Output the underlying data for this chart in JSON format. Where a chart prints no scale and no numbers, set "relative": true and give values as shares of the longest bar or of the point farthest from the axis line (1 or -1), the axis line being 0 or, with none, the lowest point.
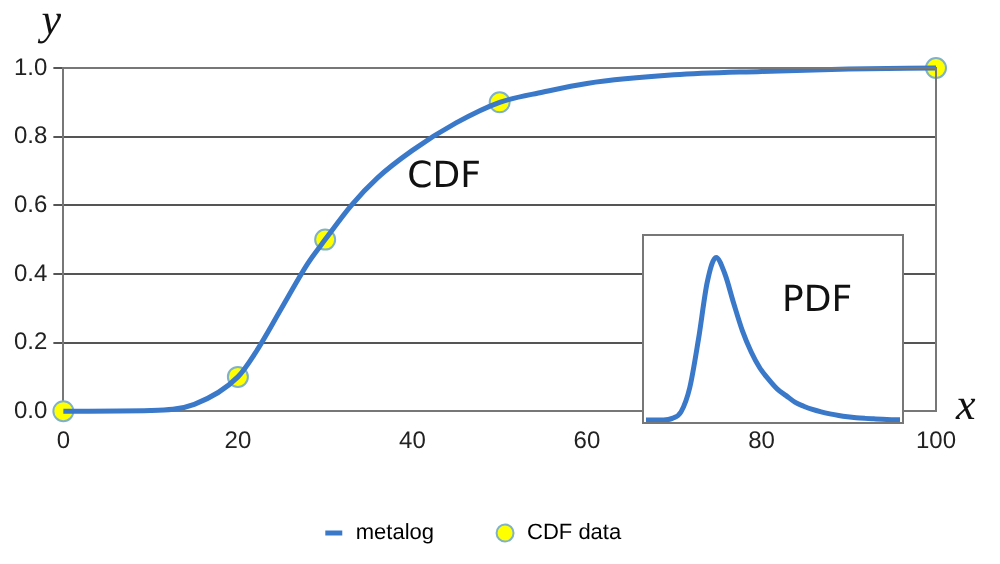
{
  "chart_data": [
    {
      "type": "line",
      "xlabel": "x",
      "ylabel": "y",
      "xlim": [
        0,
        100
      ],
      "ylim": [
        0,
        1
      ],
      "xticks": [
        0,
        20,
        40,
        60,
        80,
        100
      ],
      "yticks": [
        {
          "value": 0,
          "label": "0.0"
        },
        {
          "value": 0.2,
          "label": "0.2"
        },
        {
          "value": 0.4,
          "label": "0.4"
        },
        {
          "value": 0.6,
          "label": "0.6"
        },
        {
          "value": 0.8,
          "label": "0.8"
        },
        {
          "value": 1,
          "label": "1.0"
        }
      ],
      "grid": "y",
      "legend": "bottom",
      "annotations": [
        "CDF"
      ],
      "series": [
        {
          "name": "metalog",
          "type": "line",
          "color": "#3a78c9",
          "marker": "none",
          "x": [
            0,
            10,
            15,
            20,
            22,
            25,
            28,
            30,
            33,
            36,
            40,
            45,
            50,
            55,
            60,
            70,
            80,
            90,
            100
          ],
          "values": [
            0,
            0.002,
            0.02,
            0.1,
            0.17,
            0.3,
            0.43,
            0.5,
            0.6,
            0.68,
            0.76,
            0.84,
            0.9,
            0.93,
            0.955,
            0.98,
            0.99,
            0.997,
            1
          ]
        },
        {
          "name": "CDF data",
          "type": "scatter",
          "color": "#ffff00",
          "marker": "circle",
          "x": [
            0,
            20,
            30,
            50,
            100
          ],
          "values": [
            0,
            0.1,
            0.5,
            0.9,
            1
          ]
        }
      ]
    },
    {
      "type": "line",
      "relative": true,
      "annotations": [
        "PDF"
      ],
      "categories": [
        null,
        null,
        null,
        null,
        null,
        null,
        null,
        null,
        null,
        null,
        null,
        null,
        null,
        null,
        null,
        null,
        null,
        null,
        null,
        null,
        null,
        null,
        null,
        null,
        null,
        null,
        null,
        null,
        null,
        null
      ],
      "series": [
        {
          "color": "#3a78c9",
          "values": [
            0,
            0,
            0,
            0.01,
            0.05,
            0.2,
            0.5,
            0.85,
            1,
            0.9,
            0.72,
            0.55,
            0.42,
            0.32,
            0.25,
            0.19,
            0.15,
            0.11,
            0.085,
            0.065,
            0.05,
            0.038,
            0.028,
            0.02,
            0.014,
            0.01,
            0.007,
            0.004,
            0.002,
            0.001
          ]
        }
      ]
    }
  ]
}
